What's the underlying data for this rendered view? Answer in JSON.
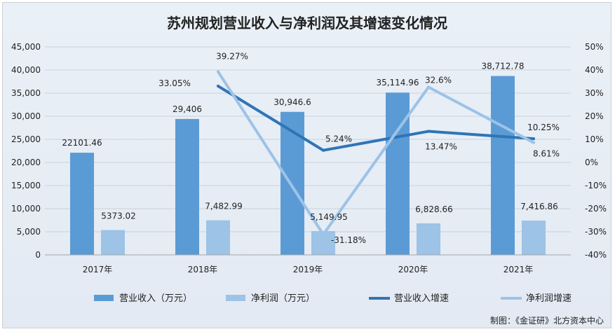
{
  "chart_data": {
    "type": "bar",
    "title": "苏州规划营业收入与净利润及其增速变化情况",
    "categories": [
      "2017年",
      "2018年",
      "2019年",
      "2020年",
      "2021年"
    ],
    "series": [
      {
        "name": "营业收入（万元）",
        "kind": "bar",
        "axis": "left",
        "color": "#5b9bd5",
        "values": [
          22101.46,
          29406,
          30946.6,
          35114.96,
          38712.78
        ],
        "labels": [
          "22101.46",
          "29,406",
          "30,946.6",
          "35,114.96",
          "38,712.78"
        ]
      },
      {
        "name": "净利润（万元）",
        "kind": "bar",
        "axis": "left",
        "color": "#9dc3e6",
        "values": [
          5373.02,
          7482.99,
          5149.95,
          6828.66,
          7416.86
        ],
        "labels": [
          "5373.02",
          "7,482.99",
          "5,149.95",
          "6,828.66",
          "7,416.86"
        ]
      },
      {
        "name": "营业收入增速",
        "kind": "line",
        "axis": "right",
        "color": "#2e75b6",
        "values": [
          null,
          33.05,
          5.24,
          13.47,
          10.25
        ],
        "labels": [
          "",
          "33.05%",
          "5.24%",
          "13.47%",
          "10.25%"
        ]
      },
      {
        "name": "净利润增速",
        "kind": "line",
        "axis": "right",
        "color": "#9dc3e6",
        "values": [
          null,
          39.27,
          -31.18,
          32.6,
          8.61
        ],
        "labels": [
          "",
          "39.27%",
          "-31.18%",
          "32.6%",
          "8.61%"
        ]
      }
    ],
    "y_left": {
      "min": 0,
      "max": 45000,
      "step": 5000,
      "ticks": [
        "0",
        "5,000",
        "10,000",
        "15,000",
        "20,000",
        "25,000",
        "30,000",
        "35,000",
        "40,000",
        "45,000"
      ]
    },
    "y_right": {
      "min": -40,
      "max": 50,
      "step": 10,
      "ticks": [
        "-40%",
        "-30%",
        "-20%",
        "-10%",
        "0%",
        "10%",
        "20%",
        "30%",
        "40%",
        "50%"
      ]
    },
    "grid": true,
    "legend_position": "bottom",
    "source_note": "制图：《金证研》北方资本中心"
  }
}
